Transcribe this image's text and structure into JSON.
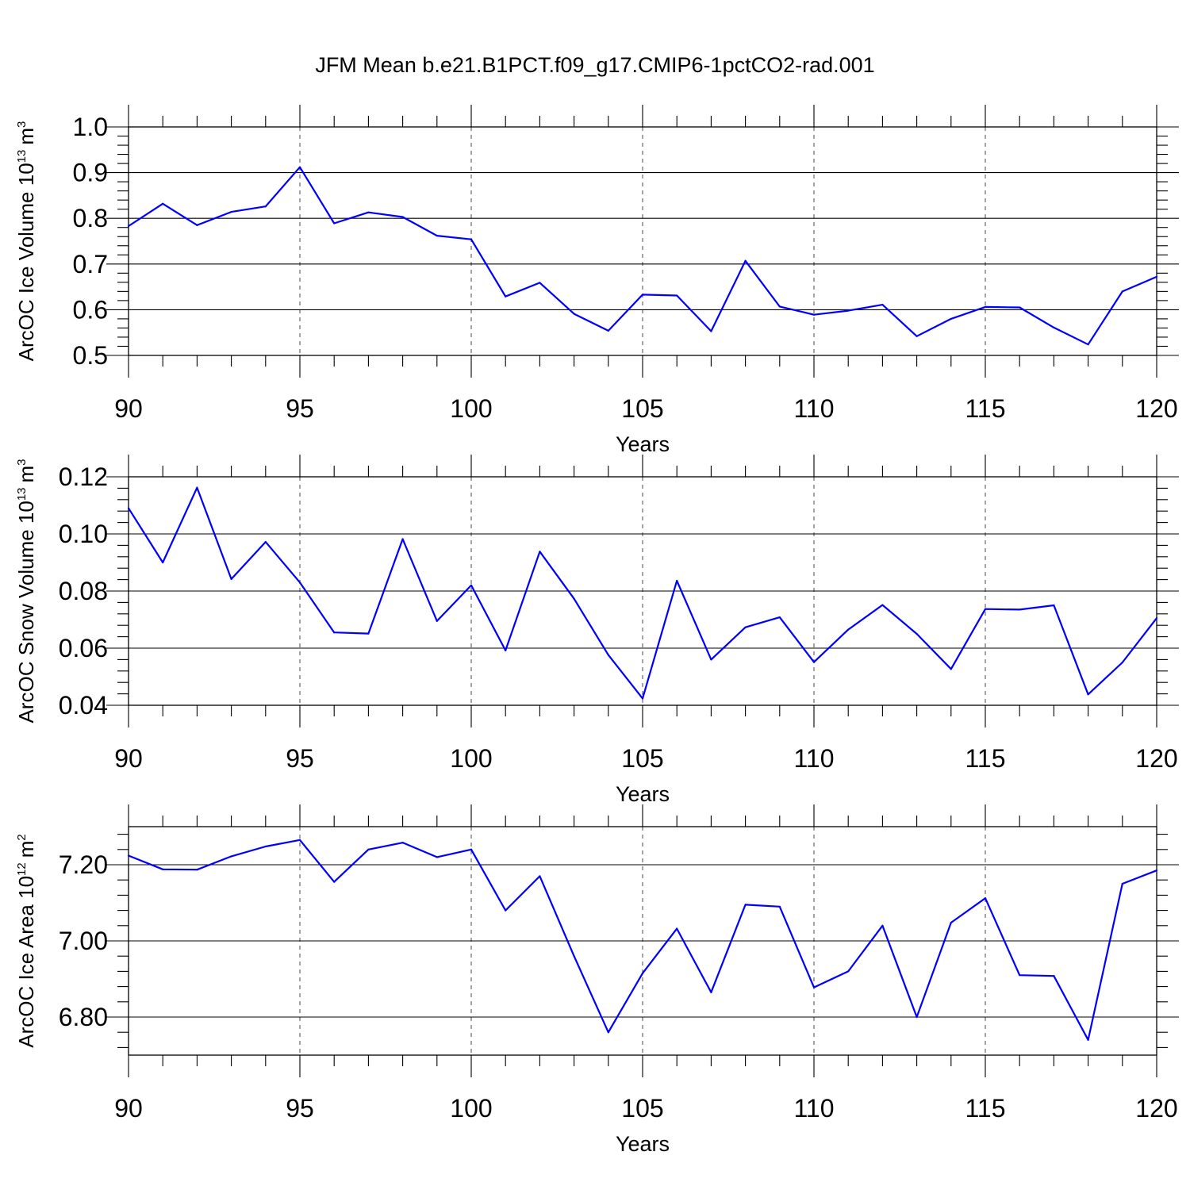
{
  "chart_data": {
    "type": "line",
    "title": "JFM Mean b.e21.B1PCT.f09_g17.CMIP6-1pctCO2-rad.001",
    "line_color": "#0000ff",
    "panels": [
      {
        "ylabel": "ArcOC Ice Volume 10",
        "ylabel_exp": "13",
        "ylabel_unit": "m",
        "ylabel_unit_exp": "3",
        "xlabel": "Years",
        "xlim": [
          90,
          120
        ],
        "ylim": [
          0.5,
          1.0
        ],
        "x_ticks": [
          "90",
          "95",
          "100",
          "105",
          "110",
          "115",
          "120"
        ],
        "y_ticks": [
          "0.5",
          "0.6",
          "0.7",
          "0.8",
          "0.9",
          "1.0"
        ],
        "x": [
          90,
          91,
          92,
          93,
          94,
          95,
          96,
          97,
          98,
          99,
          100,
          101,
          102,
          103,
          104,
          105,
          106,
          107,
          108,
          109,
          110,
          111,
          112,
          113,
          114,
          115,
          116,
          117,
          118,
          119,
          120
        ],
        "values": [
          0.783,
          0.832,
          0.785,
          0.814,
          0.826,
          0.912,
          0.789,
          0.813,
          0.803,
          0.762,
          0.754,
          0.629,
          0.659,
          0.591,
          0.554,
          0.633,
          0.631,
          0.553,
          0.707,
          0.607,
          0.589,
          0.598,
          0.611,
          0.542,
          0.58,
          0.606,
          0.605,
          0.561,
          0.524,
          0.64,
          0.672
        ]
      },
      {
        "ylabel": "ArcOC Snow Volume 10",
        "ylabel_exp": "13",
        "ylabel_unit": "m",
        "ylabel_unit_exp": "3",
        "xlabel": "Years",
        "xlim": [
          90,
          120
        ],
        "ylim": [
          0.04,
          0.12
        ],
        "x_ticks": [
          "90",
          "95",
          "100",
          "105",
          "110",
          "115",
          "120"
        ],
        "y_ticks": [
          "0.04",
          "0.06",
          "0.08",
          "0.10",
          "0.12"
        ],
        "x": [
          90,
          91,
          92,
          93,
          94,
          95,
          96,
          97,
          98,
          99,
          100,
          101,
          102,
          103,
          104,
          105,
          106,
          107,
          108,
          109,
          110,
          111,
          112,
          113,
          114,
          115,
          116,
          117,
          118,
          119,
          120
        ],
        "values": [
          0.109,
          0.09,
          0.1162,
          0.0842,
          0.0972,
          0.083,
          0.0655,
          0.0651,
          0.0982,
          0.0695,
          0.082,
          0.0592,
          0.0938,
          0.0773,
          0.0576,
          0.0424,
          0.0836,
          0.056,
          0.0673,
          0.0708,
          0.0551,
          0.0665,
          0.0751,
          0.065,
          0.0527,
          0.0737,
          0.0735,
          0.075,
          0.0438,
          0.055,
          0.0705
        ]
      },
      {
        "ylabel": "ArcOC Ice Area 10",
        "ylabel_exp": "12",
        "ylabel_unit": "m",
        "ylabel_unit_exp": "2",
        "xlabel": "Years",
        "xlim": [
          90,
          120
        ],
        "ylim": [
          6.7,
          7.3
        ],
        "x_ticks": [
          "90",
          "95",
          "100",
          "105",
          "110",
          "115",
          "120"
        ],
        "y_ticks": [
          "6.80",
          "7.00",
          "7.20"
        ],
        "y_tick_values": [
          6.8,
          7.0,
          7.2
        ],
        "x": [
          90,
          91,
          92,
          93,
          94,
          95,
          96,
          97,
          98,
          99,
          100,
          101,
          102,
          103,
          104,
          105,
          106,
          107,
          108,
          109,
          110,
          111,
          112,
          113,
          114,
          115,
          116,
          117,
          118,
          119,
          120
        ],
        "values": [
          7.224,
          7.188,
          7.187,
          7.222,
          7.248,
          7.265,
          7.155,
          7.24,
          7.258,
          7.22,
          7.24,
          7.08,
          7.17,
          6.96,
          6.76,
          6.915,
          7.032,
          6.865,
          7.095,
          7.09,
          6.878,
          6.92,
          7.04,
          6.8,
          7.048,
          7.112,
          6.91,
          6.908,
          6.74,
          7.15,
          7.185
        ]
      }
    ]
  }
}
